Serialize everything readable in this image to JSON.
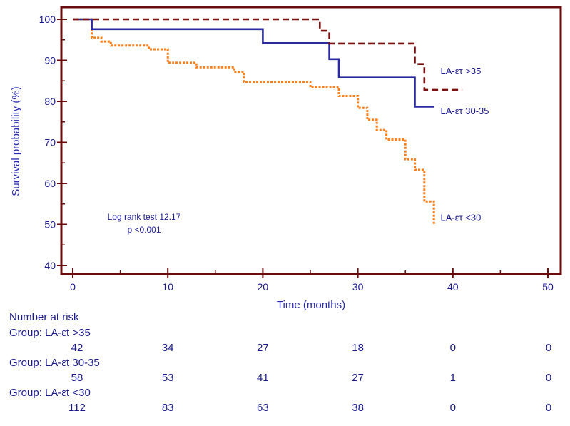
{
  "chart_data": {
    "type": "line",
    "subtype": "kaplan-meier",
    "xlabel": "Time (months)",
    "ylabel": "Survival probability (%)",
    "xlim": [
      -1,
      51
    ],
    "ylim": [
      38,
      101
    ],
    "xticks": [
      0,
      10,
      20,
      30,
      40,
      50
    ],
    "yticks": [
      40,
      50,
      60,
      70,
      80,
      90,
      100
    ],
    "annotation": [
      "Log rank test 12.17",
      "p <0.001"
    ],
    "colors": {
      "frame": "#6b0c0c",
      "text": "#1a1a8c",
      "gt35": "#7a1010",
      "r30_35": "#2a2aa0",
      "lt30": "#ff7f1a"
    },
    "series": [
      {
        "name": "LA-ετ >35",
        "style": "dashed",
        "steps": [
          [
            0,
            100
          ],
          [
            26,
            100
          ],
          [
            26,
            97.2
          ],
          [
            27,
            97.2
          ],
          [
            27,
            94.1
          ],
          [
            36,
            94.1
          ],
          [
            36,
            89.1
          ],
          [
            37,
            89.1
          ],
          [
            37,
            82.8
          ],
          [
            41,
            82.8
          ]
        ]
      },
      {
        "name": "LA-ετ 30-35",
        "style": "solid",
        "steps": [
          [
            0,
            100
          ],
          [
            2,
            100
          ],
          [
            2,
            97.6
          ],
          [
            20,
            97.6
          ],
          [
            20,
            94.2
          ],
          [
            27,
            94.2
          ],
          [
            27,
            90.3
          ],
          [
            28,
            90.3
          ],
          [
            28,
            85.8
          ],
          [
            36,
            85.8
          ],
          [
            36,
            78.7
          ],
          [
            38,
            78.7
          ]
        ]
      },
      {
        "name": "LA-ετ <30",
        "style": "dotted",
        "steps": [
          [
            0,
            100
          ],
          [
            2,
            100
          ],
          [
            2,
            95.5
          ],
          [
            3,
            95.5
          ],
          [
            3,
            94.6
          ],
          [
            4,
            94.6
          ],
          [
            4,
            93.6
          ],
          [
            8,
            93.6
          ],
          [
            8,
            92.7
          ],
          [
            10,
            92.7
          ],
          [
            10,
            89.4
          ],
          [
            13,
            89.4
          ],
          [
            13,
            88.3
          ],
          [
            17,
            88.3
          ],
          [
            17,
            87.2
          ],
          [
            18,
            87.2
          ],
          [
            18,
            84.7
          ],
          [
            25,
            84.7
          ],
          [
            25,
            83.4
          ],
          [
            28,
            83.4
          ],
          [
            28,
            81.3
          ],
          [
            30,
            81.3
          ],
          [
            30,
            78.4
          ],
          [
            31,
            78.4
          ],
          [
            31,
            75.5
          ],
          [
            32,
            75.5
          ],
          [
            32,
            73
          ],
          [
            33,
            73
          ],
          [
            33,
            70.7
          ],
          [
            35,
            70.7
          ],
          [
            35,
            65.9
          ],
          [
            36,
            65.9
          ],
          [
            36,
            63.3
          ],
          [
            37,
            63.3
          ],
          [
            37,
            55.6
          ],
          [
            38,
            55.6
          ],
          [
            38,
            49.9
          ]
        ]
      }
    ],
    "series_labels": [
      {
        "text": "LA-ετ >35",
        "x": 38.7,
        "y": 86.6
      },
      {
        "text": "LA-ετ 30-35",
        "x": 38.7,
        "y": 76.9
      },
      {
        "text": "LA-ετ <30",
        "x": 38.7,
        "y": 50.9
      }
    ],
    "risk_table": {
      "title": "Number at risk",
      "times": [
        0,
        10,
        20,
        30,
        40,
        50
      ],
      "groups": [
        {
          "label": "Group: LA-εt >35",
          "values": [
            "42",
            "34",
            "27",
            "18",
            "0",
            "0"
          ]
        },
        {
          "label": "Group: LA-εt 30-35",
          "values": [
            "58",
            "53",
            "41",
            "27",
            "1",
            "0"
          ]
        },
        {
          "label": "Group: LA-εt <30",
          "values": [
            "112",
            "83",
            "63",
            "38",
            "0",
            "0"
          ]
        }
      ]
    }
  }
}
